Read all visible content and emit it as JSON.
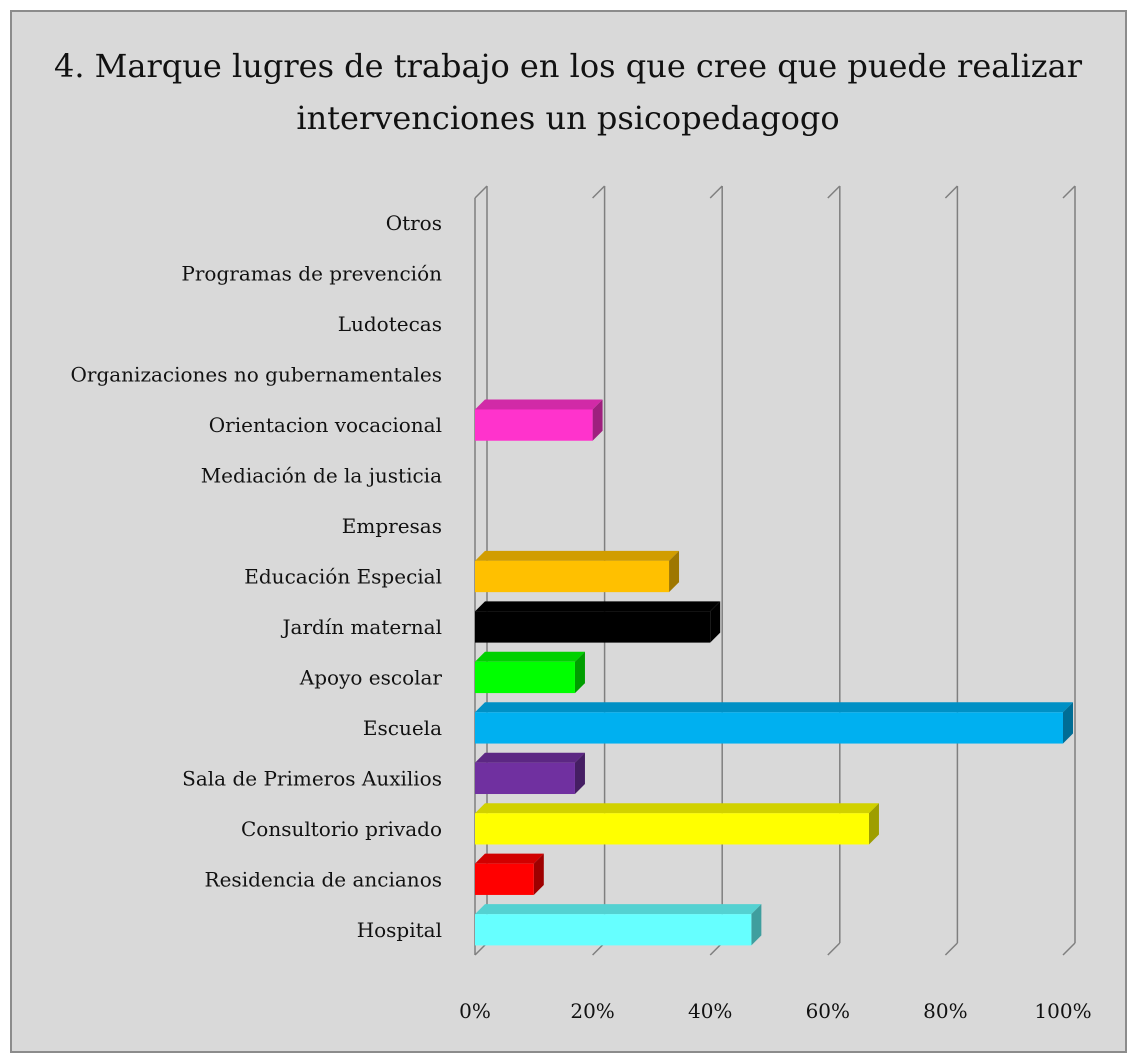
{
  "chart_data": {
    "type": "bar",
    "orientation": "horizontal",
    "title": [
      "4. Marque lugres de trabajo en los que cree que puede realizar",
      "intervenciones un psicopedagogo"
    ],
    "xlim": [
      0,
      100
    ],
    "x_ticks": [
      "0%",
      "20%",
      "40%",
      "60%",
      "80%",
      "100%"
    ],
    "grid": true,
    "legend": "none",
    "categories": [
      "Otros",
      "Programas de prevención",
      "Ludotecas",
      "Organizaciones no gubernamentales",
      "Orientacion vocacional",
      "Mediación de la justicia",
      "Empresas",
      "Educación Especial",
      "Jardín maternal",
      "Apoyo escolar",
      "Escuela",
      "Sala de Primeros Auxilios",
      "Consultorio privado",
      "Residencia de ancianos",
      "Hospital"
    ],
    "values": [
      0,
      0,
      0,
      0,
      20,
      0,
      0,
      33,
      40,
      17,
      100,
      17,
      67,
      10,
      47
    ],
    "colors": [
      "#999999",
      "#999999",
      "#999999",
      "#999999",
      "#ff33cc",
      "#999999",
      "#999999",
      "#ffc000",
      "#000000",
      "#00ff00",
      "#00b0f0",
      "#7030a0",
      "#ffff00",
      "#ff0000",
      "#66ffff"
    ]
  }
}
